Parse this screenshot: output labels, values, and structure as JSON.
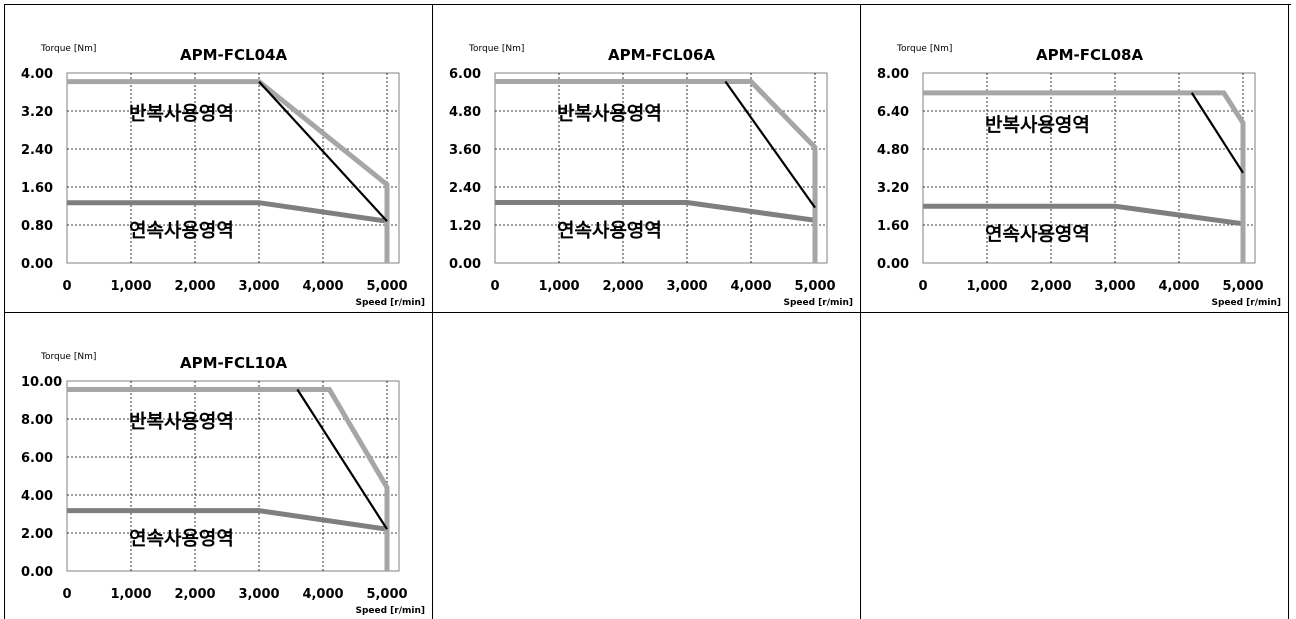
{
  "colors": {
    "intermittent": "#a6a6a6",
    "continuous": "#7f7f7f",
    "limit": "#000000"
  },
  "chart_data": [
    {
      "type": "line",
      "title": "APM-FCL04A",
      "ylabel": "Torque [Nm]",
      "xlabel": "Speed [r/min]",
      "xlim": [
        0,
        5000
      ],
      "ylim": [
        0,
        4
      ],
      "x_ticks": [
        "0",
        "1,000",
        "2,000",
        "3,000",
        "4,000",
        "5,000"
      ],
      "y_ticks": [
        "4.00",
        "3.20",
        "2.40",
        "1.60",
        "0.80",
        "0.00"
      ],
      "annotations": {
        "intermittent_zone": "반복사용영역",
        "continuous_zone": "연속사용영역"
      },
      "series": [
        {
          "role": "intermittent",
          "points": [
            [
              0,
              3.82
            ],
            [
              3000,
              3.82
            ],
            [
              5000,
              1.65
            ],
            [
              5000,
              0
            ]
          ]
        },
        {
          "role": "limit",
          "points": [
            [
              3000,
              3.82
            ],
            [
              5000,
              0.88
            ]
          ]
        },
        {
          "role": "continuous",
          "points": [
            [
              0,
              1.27
            ],
            [
              3000,
              1.27
            ],
            [
              5000,
              0.88
            ],
            [
              5000,
              0
            ]
          ]
        }
      ]
    },
    {
      "type": "line",
      "title": "APM-FCL06A",
      "ylabel": "Torque [Nm]",
      "xlabel": "Speed [r/min]",
      "xlim": [
        0,
        5000
      ],
      "ylim": [
        0,
        6
      ],
      "x_ticks": [
        "0",
        "1,000",
        "2,000",
        "3,000",
        "4,000",
        "5,000"
      ],
      "y_ticks": [
        "6.00",
        "4.80",
        "3.60",
        "2.40",
        "1.20",
        "0.00"
      ],
      "annotations": {
        "intermittent_zone": "반복사용영역",
        "continuous_zone": "연속사용영역"
      },
      "series": [
        {
          "role": "intermittent",
          "points": [
            [
              0,
              5.73
            ],
            [
              4000,
              5.73
            ],
            [
              5000,
              3.65
            ],
            [
              5000,
              0
            ]
          ]
        },
        {
          "role": "limit",
          "points": [
            [
              3600,
              5.73
            ],
            [
              5000,
              1.75
            ]
          ]
        },
        {
          "role": "continuous",
          "points": [
            [
              0,
              1.91
            ],
            [
              3000,
              1.91
            ],
            [
              5000,
              1.35
            ],
            [
              5000,
              0
            ]
          ]
        }
      ]
    },
    {
      "type": "line",
      "title": "APM-FCL08A",
      "ylabel": "Torque [Nm]",
      "xlabel": "Speed [r/min]",
      "xlim": [
        0,
        5000
      ],
      "ylim": [
        0,
        8
      ],
      "x_ticks": [
        "0",
        "1,000",
        "2,000",
        "3,000",
        "4,000",
        "5,000"
      ],
      "y_ticks": [
        "8.00",
        "6.40",
        "4.80",
        "3.20",
        "1.60",
        "0.00"
      ],
      "annotations": {
        "intermittent_zone": "반복사용영역",
        "continuous_zone": "연속사용영역"
      },
      "series": [
        {
          "role": "intermittent",
          "points": [
            [
              0,
              7.16
            ],
            [
              4700,
              7.16
            ],
            [
              5000,
              5.9
            ],
            [
              5000,
              0
            ]
          ]
        },
        {
          "role": "limit",
          "points": [
            [
              4200,
              7.16
            ],
            [
              5000,
              3.8
            ]
          ]
        },
        {
          "role": "continuous",
          "points": [
            [
              0,
              2.39
            ],
            [
              3000,
              2.39
            ],
            [
              5000,
              1.65
            ],
            [
              5000,
              0
            ]
          ]
        }
      ]
    },
    {
      "type": "line",
      "title": "APM-FCL10A",
      "ylabel": "Torque [Nm]",
      "xlabel": "Speed [r/min]",
      "xlim": [
        0,
        5000
      ],
      "ylim": [
        0,
        10
      ],
      "x_ticks": [
        "0",
        "1,000",
        "2,000",
        "3,000",
        "4,000",
        "5,000"
      ],
      "y_ticks": [
        "10.00",
        "8.00",
        "6.00",
        "4.00",
        "2.00",
        "0.00"
      ],
      "annotations": {
        "intermittent_zone": "반복사용영역",
        "continuous_zone": "연속사용영역"
      },
      "series": [
        {
          "role": "intermittent",
          "points": [
            [
              0,
              9.55
            ],
            [
              4100,
              9.55
            ],
            [
              5000,
              4.4
            ],
            [
              5000,
              0
            ]
          ]
        },
        {
          "role": "limit",
          "points": [
            [
              3600,
              9.55
            ],
            [
              5000,
              2.2
            ]
          ]
        },
        {
          "role": "continuous",
          "points": [
            [
              0,
              3.18
            ],
            [
              3000,
              3.18
            ],
            [
              5000,
              2.2
            ],
            [
              5000,
              0
            ]
          ]
        }
      ]
    }
  ]
}
